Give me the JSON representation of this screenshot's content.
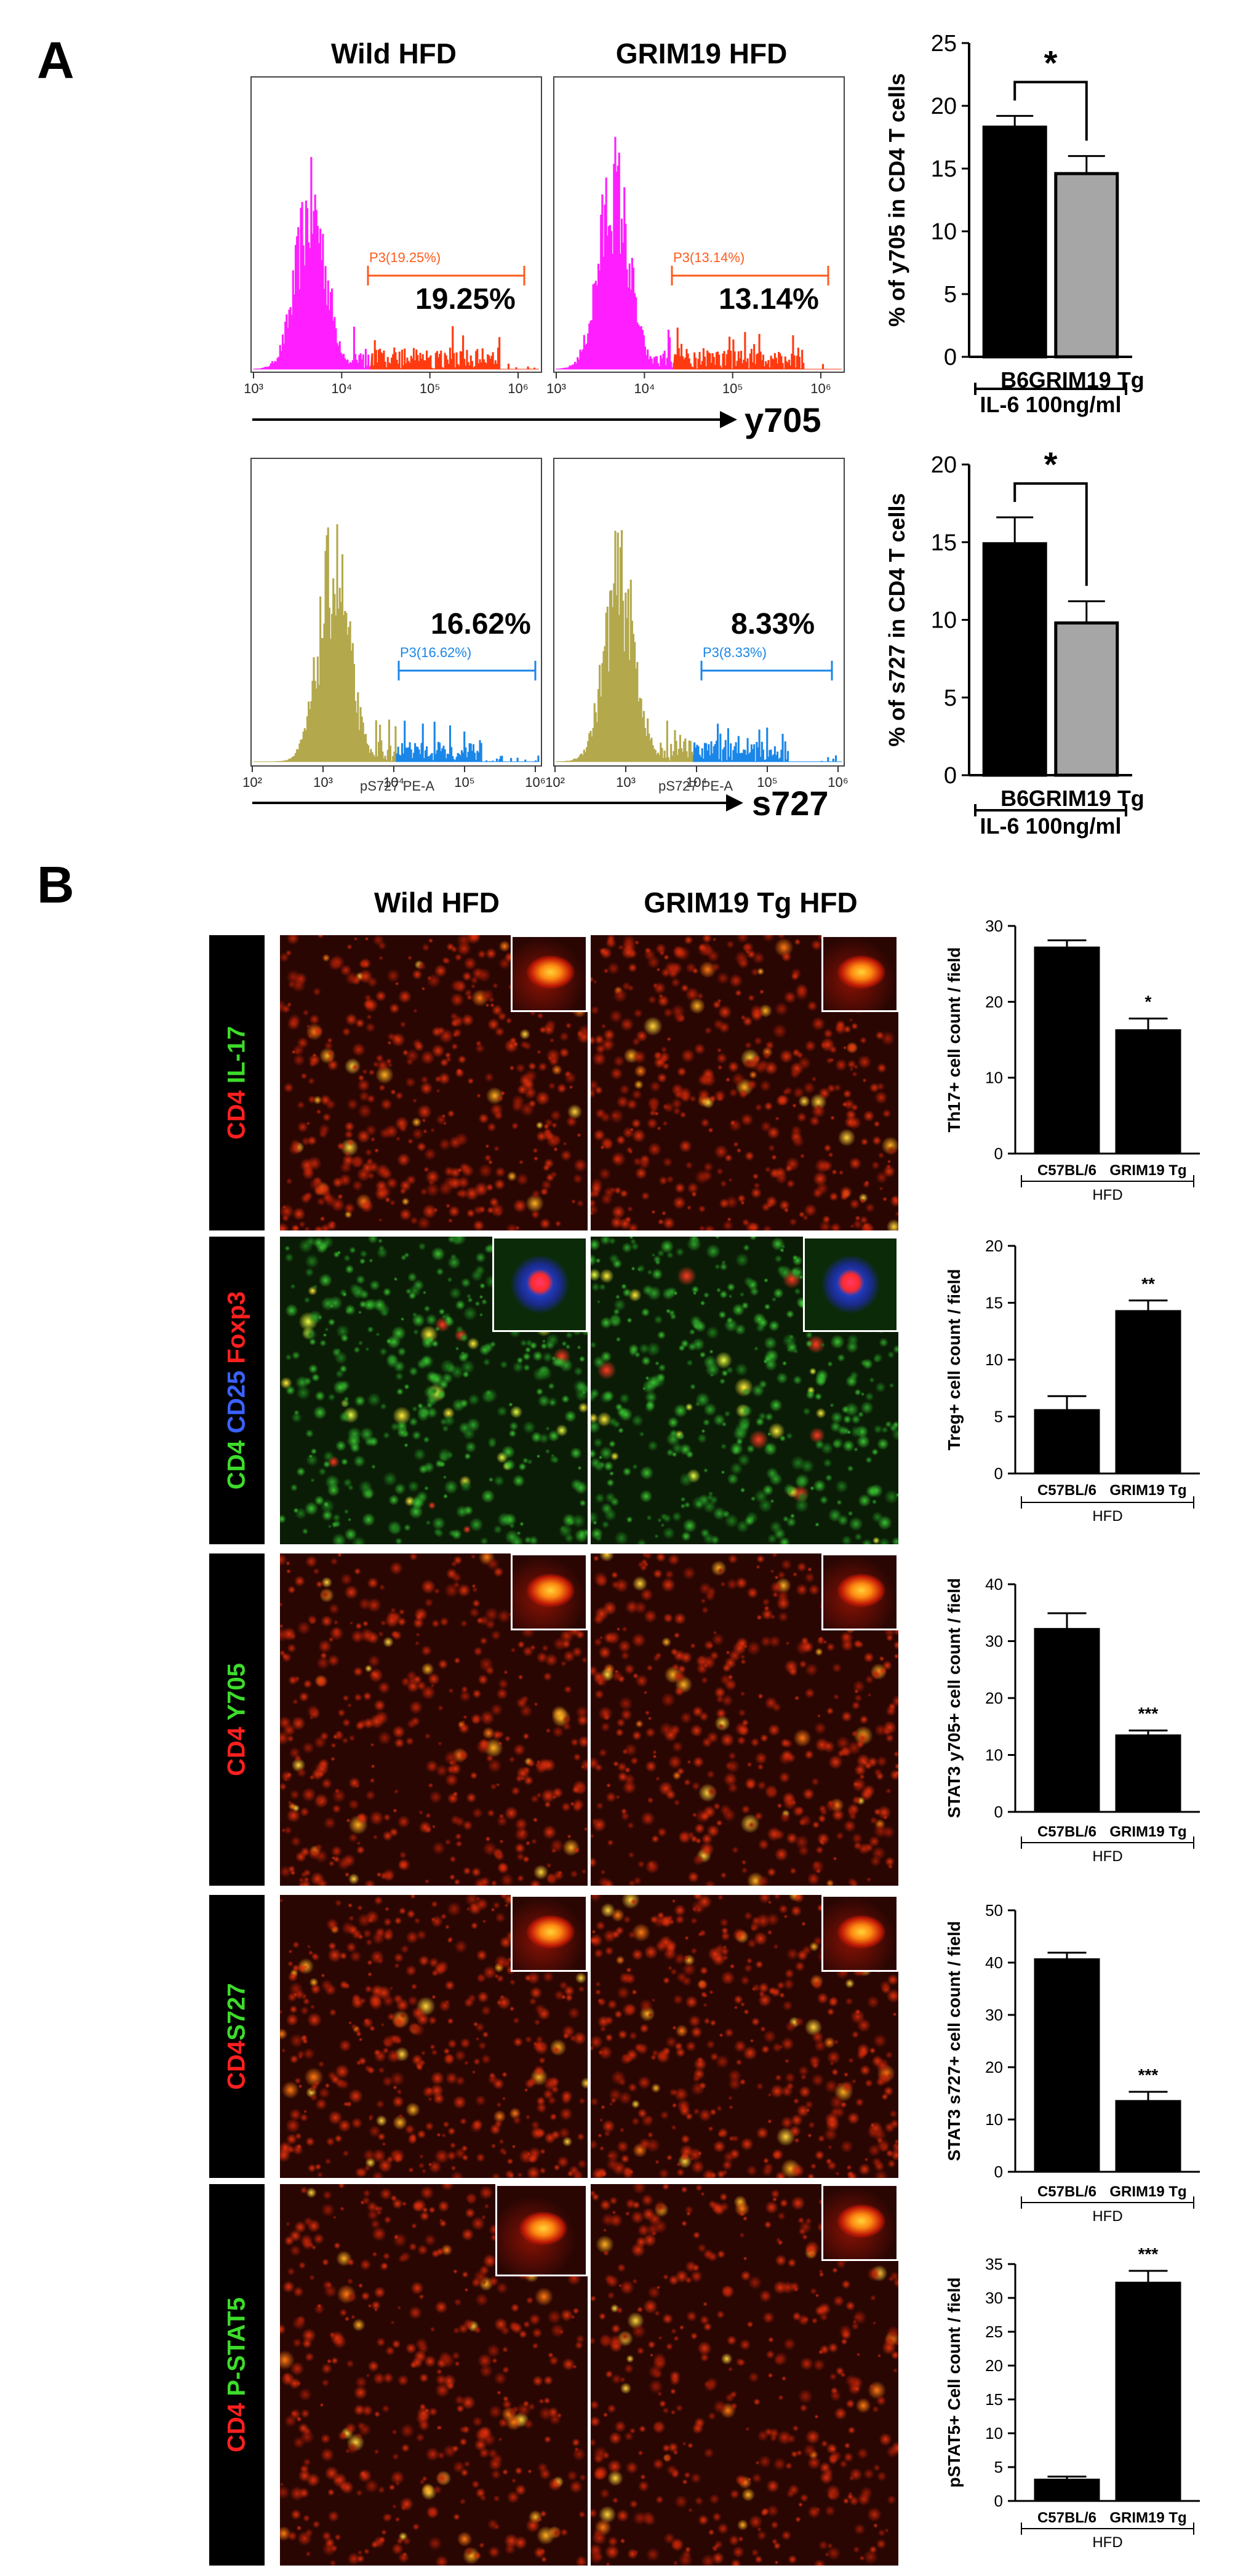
{
  "panels": {
    "a": "A",
    "b": "B"
  },
  "flow": {
    "col_wild": "Wild HFD",
    "col_grim": "GRIM19 HFD",
    "y705_axis": "y705",
    "s727_axis": "s727",
    "top_left": {
      "gate": "P3(19.25%)",
      "pct": "19.25%"
    },
    "top_right": {
      "gate": "P3(13.14%)",
      "pct": "13.14%"
    },
    "bottom_left": {
      "gate": "P3(16.62%)",
      "pct": "16.62%",
      "xlabel": "pS727 PE-A"
    },
    "bottom_right": {
      "gate": "P3(8.33%)",
      "pct": "8.33%",
      "xlabel": "pS727 PE-A"
    },
    "ticks_top": [
      "10³",
      "10⁴",
      "10⁵",
      "10⁶"
    ],
    "ticks_bottom": [
      "10²",
      "10³",
      "10⁴",
      "10⁵",
      "10⁶"
    ],
    "colors": {
      "magenta": "#ff1eff",
      "orange_red": "#ff3a10",
      "olive": "#b3a84c",
      "blue": "#1a86e8",
      "gate_orange": "#ff5a1e",
      "gate_blue": "#1a86e8"
    }
  },
  "micro": {
    "col_wild": "Wild HFD",
    "col_grim": "GRIM19 Tg HFD",
    "rows": [
      {
        "parts": [
          {
            "t": "CD4",
            "c": "red"
          },
          {
            "t": " IL-17",
            "c": "green"
          }
        ]
      },
      {
        "parts": [
          {
            "t": "CD4",
            "c": "green"
          },
          {
            "t": " CD25",
            "c": "blue"
          },
          {
            "t": " Foxp3",
            "c": "red"
          }
        ]
      },
      {
        "parts": [
          {
            "t": "CD4",
            "c": "red"
          },
          {
            "t": " Y705",
            "c": "green"
          }
        ]
      },
      {
        "parts": [
          {
            "t": "CD4",
            "c": "red"
          },
          {
            "t": "S727",
            "c": "green"
          }
        ]
      },
      {
        "parts": [
          {
            "t": "CD4",
            "c": "red"
          },
          {
            "t": " P-STAT5",
            "c": "green"
          }
        ]
      }
    ]
  },
  "chart_data": [
    {
      "type": "bar",
      "categories": [
        "B6",
        "GRIM19 Tg"
      ],
      "values": [
        18.3,
        14.6
      ],
      "errors": [
        0.9,
        1.4
      ],
      "colors": [
        "#000000",
        "#a6a6a6"
      ],
      "ylabel": "% of y705 in CD4 T cells",
      "xgroup": "IL-6 100ng/ml",
      "ylim": [
        0,
        25
      ],
      "yticks": [
        0,
        5,
        10,
        15,
        20,
        25
      ],
      "sig": "*"
    },
    {
      "type": "bar",
      "categories": [
        "B6",
        "GRIM19 Tg"
      ],
      "values": [
        14.9,
        9.8
      ],
      "errors": [
        1.7,
        1.4
      ],
      "colors": [
        "#000000",
        "#a6a6a6"
      ],
      "ylabel": "% of s727 in CD4 T cells",
      "xgroup": "IL-6 100ng/ml",
      "ylim": [
        0,
        20
      ],
      "yticks": [
        0,
        5,
        10,
        15,
        20
      ],
      "sig": "*"
    },
    {
      "type": "bar",
      "categories": [
        "C57BL/6",
        "GRIM19 Tg"
      ],
      "values": [
        27.2,
        16.3
      ],
      "errors": [
        0.9,
        1.5
      ],
      "colors": [
        "#000000",
        "#000000"
      ],
      "ylabel": "Th17+ cell count / field",
      "xgroup": "HFD",
      "ylim": [
        0,
        30
      ],
      "yticks": [
        0,
        10,
        20,
        30
      ],
      "sig2": "*"
    },
    {
      "type": "bar",
      "categories": [
        "C57BL/6",
        "GRIM19 Tg"
      ],
      "values": [
        5.6,
        14.3
      ],
      "errors": [
        1.2,
        0.9
      ],
      "colors": [
        "#000000",
        "#000000"
      ],
      "ylabel": "Treg+ cell count / field",
      "xgroup": "HFD",
      "ylim": [
        0,
        20
      ],
      "yticks": [
        0,
        5,
        10,
        15,
        20
      ],
      "sig2": "**"
    },
    {
      "type": "bar",
      "categories": [
        "C57BL/6",
        "GRIM19 Tg"
      ],
      "values": [
        32.2,
        13.5
      ],
      "errors": [
        2.7,
        0.8
      ],
      "colors": [
        "#000000",
        "#000000"
      ],
      "ylabel": "STAT3 y705+ cell count / field",
      "xgroup": "HFD",
      "ylim": [
        0,
        40
      ],
      "yticks": [
        0,
        10,
        20,
        30,
        40
      ],
      "sig2": "***"
    },
    {
      "type": "bar",
      "categories": [
        "C57BL/6",
        "GRIM19 Tg"
      ],
      "values": [
        40.7,
        13.6
      ],
      "errors": [
        1.2,
        1.7
      ],
      "colors": [
        "#000000",
        "#000000"
      ],
      "ylabel": "STAT3 s727+ cell count / field",
      "xgroup": "HFD",
      "ylim": [
        0,
        50
      ],
      "yticks": [
        0,
        10,
        20,
        30,
        40,
        50
      ],
      "sig2": "***"
    },
    {
      "type": "bar",
      "categories": [
        "C57BL/6",
        "GRIM19 Tg"
      ],
      "values": [
        3.2,
        32.3
      ],
      "errors": [
        0.4,
        1.7
      ],
      "colors": [
        "#000000",
        "#000000"
      ],
      "ylabel": "pSTAT5+ Cell count / field",
      "xgroup": "HFD",
      "ylim": [
        0,
        35
      ],
      "yticks": [
        0,
        5,
        10,
        15,
        20,
        25,
        30,
        35
      ],
      "sig2": "***"
    }
  ]
}
